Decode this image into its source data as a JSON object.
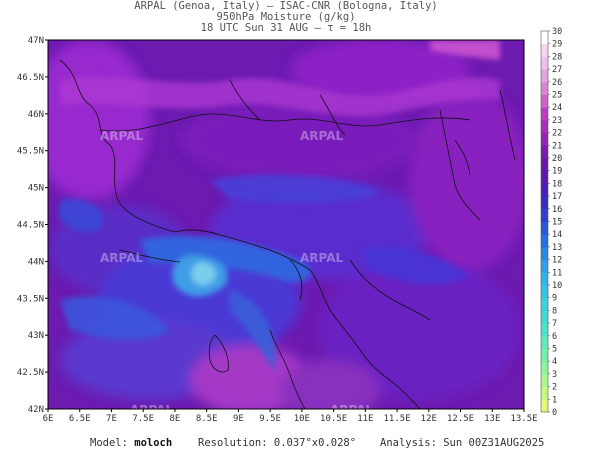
{
  "header": {
    "line1": "ARPAL (Genoa, Italy)  –  ISAC-CNR (Bologna, Italy)",
    "line2": "950hPa Moisture (g/kg)",
    "line3": "18 UTC Sun 31 AUG  –  τ = 18h"
  },
  "footer": {
    "model_label": "Model:",
    "model_value": "moloch",
    "resolution_label": "Resolution:",
    "resolution_value": "0.037°x0.028°",
    "analysis_label": "Analysis:",
    "analysis_value": "Sun 00Z31AUG2025"
  },
  "map": {
    "lat_labels": [
      "47N",
      "46.5N",
      "46N",
      "45.5N",
      "45N",
      "44.5N",
      "44N",
      "43.5N",
      "43N",
      "42.5N",
      "42N"
    ],
    "lon_labels": [
      "6E",
      "6.5E",
      "7E",
      "7.5E",
      "8E",
      "8.5E",
      "9E",
      "9.5E",
      "10E",
      "10.5E",
      "11E",
      "11.5E",
      "12E",
      "12.5E",
      "13E",
      "13.5E"
    ],
    "lat_range": [
      42,
      47
    ],
    "lon_range": [
      6,
      13.5
    ],
    "watermark": "ARPAL"
  },
  "colorbar": {
    "min": 0,
    "max": 30,
    "labels": [
      "30",
      "29",
      "28",
      "27",
      "26",
      "25",
      "24",
      "23",
      "22",
      "21",
      "20",
      "19",
      "18",
      "17",
      "16",
      "15",
      "14",
      "13",
      "12",
      "11",
      "10",
      "9",
      "8",
      "7",
      "6",
      "5",
      "4",
      "3",
      "2",
      "1",
      "0"
    ],
    "colors": [
      "#ffffff",
      "#f7d6f2",
      "#eebfe9",
      "#e4a5df",
      "#d985d4",
      "#cc62c8",
      "#bd3cbf",
      "#a82eb7",
      "#9324b1",
      "#7c1cab",
      "#6b18a8",
      "#5a18ad",
      "#4a1fb5",
      "#3b2cc0",
      "#3040cc",
      "#2a58d6",
      "#2770de",
      "#2a88e4",
      "#2f9fe8",
      "#33b3ea",
      "#36c4e6",
      "#38d2df",
      "#3ddcd4",
      "#4ae4c8",
      "#5debbb",
      "#74f0ad",
      "#8ef49e",
      "#aaf78f",
      "#c7f982",
      "#e3f977",
      "#fff46e"
    ]
  }
}
